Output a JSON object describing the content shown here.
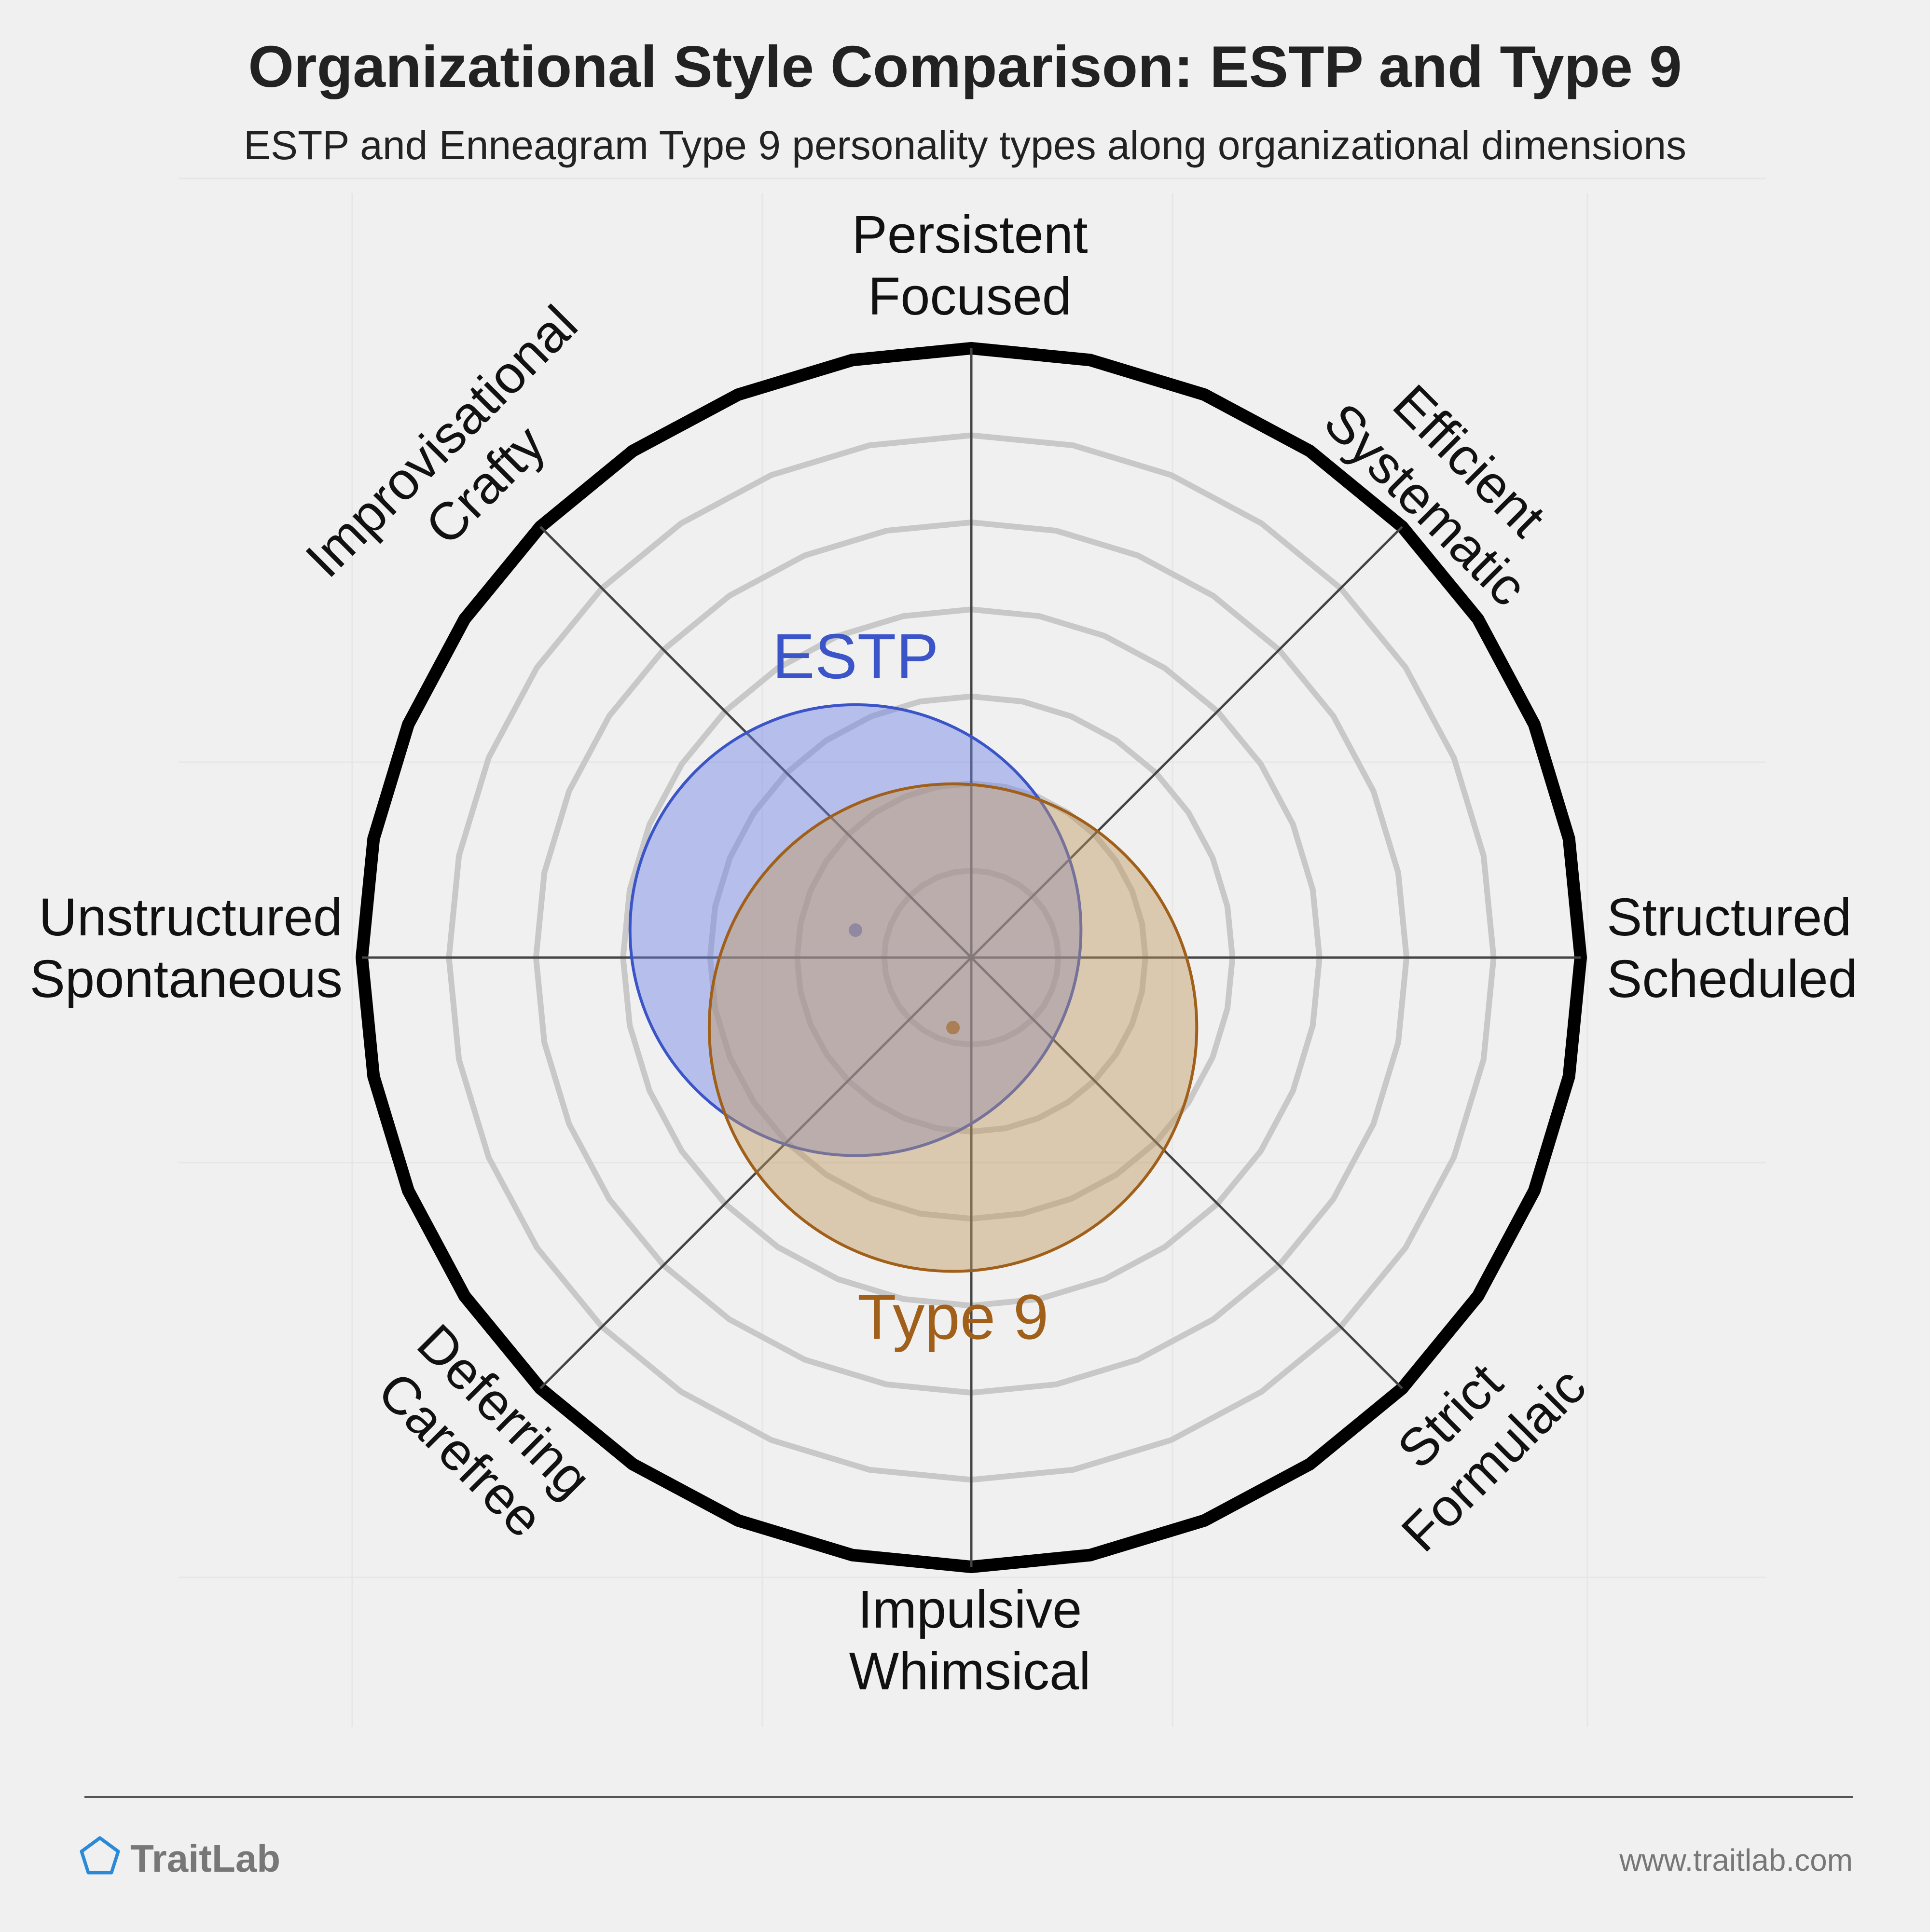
{
  "chart_data": {
    "type": "radar-bubble",
    "title": "Organizational Style Comparison: ESTP and Type 9",
    "subtitle": "ESTP and Enneagram Type 9 personality types along organizational dimensions",
    "axes": [
      {
        "lines": [
          "Persistent",
          "Focused"
        ],
        "angle_deg": 90
      },
      {
        "lines": [
          "Efficient",
          "Systematic"
        ],
        "angle_deg": 45
      },
      {
        "lines": [
          "Structured",
          "Scheduled"
        ],
        "angle_deg": 0
      },
      {
        "lines": [
          "Strict",
          "Formulaic"
        ],
        "angle_deg": -45
      },
      {
        "lines": [
          "Impulsive",
          "Whimsical"
        ],
        "angle_deg": -90
      },
      {
        "lines": [
          "Deferring",
          "Carefree"
        ],
        "angle_deg": -135
      },
      {
        "lines": [
          "Unstructured",
          "Spontaneous"
        ],
        "angle_deg": 180
      },
      {
        "lines": [
          "Improvisational",
          "Crafty"
        ],
        "angle_deg": 135
      }
    ],
    "rings": 6,
    "series": [
      {
        "name": "ESTP",
        "x": -0.19,
        "y": 0.045,
        "radius": 0.37,
        "color": "#3b54c8",
        "fill": "rgba(110,130,230,0.45)"
      },
      {
        "name": "Type 9",
        "x": -0.03,
        "y": -0.115,
        "radius": 0.4,
        "color": "#a0601a",
        "fill": "rgba(190,150,95,0.45)"
      }
    ]
  },
  "footer": {
    "brand": "TraitLab",
    "url": "www.traitlab.com"
  },
  "colors": {
    "background": "#f0f0f0",
    "outer_ring": "#000000",
    "ring": "#c8c8c8",
    "axis": "#444444"
  }
}
